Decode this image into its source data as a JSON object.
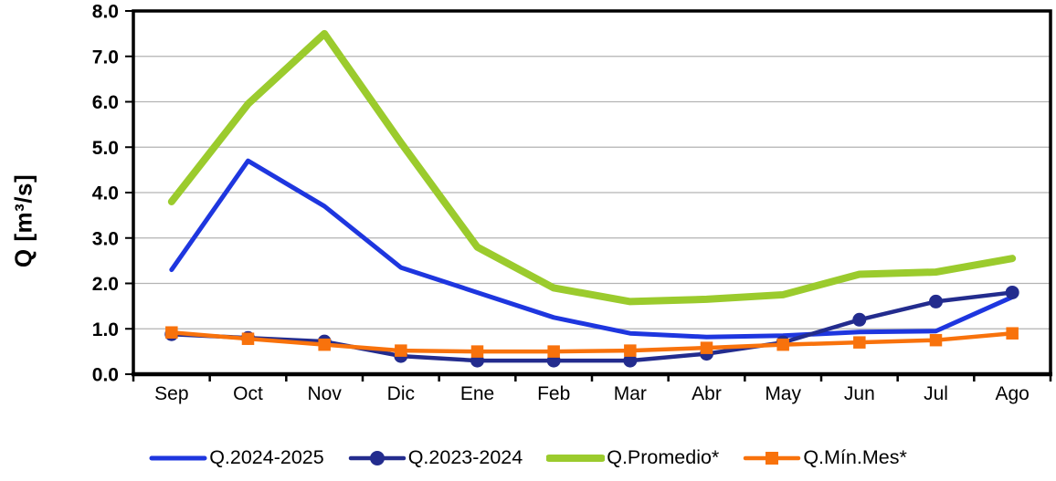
{
  "chart_data": {
    "type": "line",
    "title": "",
    "xlabel": "",
    "ylabel": "Q [m³/s]",
    "ylim": [
      0,
      8
    ],
    "y_tick_labels": [
      "0.0",
      "1.0",
      "2.0",
      "3.0",
      "4.0",
      "5.0",
      "6.0",
      "7.0",
      "8.0"
    ],
    "grid": true,
    "legend_position": "bottom",
    "axis_color": "#000000",
    "grid_color": "#b3b3b3",
    "categories": [
      "Sep",
      "Oct",
      "Nov",
      "Dic",
      "Ene",
      "Feb",
      "Mar",
      "Abr",
      "May",
      "Jun",
      "Jul",
      "Ago"
    ],
    "series": [
      {
        "name": "Q.2024-2025",
        "color": "#1e36df",
        "width": 5,
        "marker": "none",
        "values": [
          2.3,
          4.7,
          3.7,
          2.35,
          1.8,
          1.25,
          0.9,
          0.82,
          0.85,
          0.93,
          0.95,
          1.7
        ]
      },
      {
        "name": "Q.2023-2024",
        "color": "#232c8e",
        "width": 4.5,
        "marker": "circle",
        "values": [
          0.88,
          0.8,
          0.72,
          0.4,
          0.3,
          0.3,
          0.3,
          0.45,
          0.7,
          1.2,
          1.6,
          1.8
        ]
      },
      {
        "name": "Q.Promedio*",
        "color": "#9bcb2d",
        "width": 8,
        "marker": "none",
        "values": [
          3.8,
          5.95,
          7.5,
          5.1,
          2.8,
          1.9,
          1.6,
          1.65,
          1.75,
          2.2,
          2.25,
          2.55
        ]
      },
      {
        "name": "Q.Mín.Mes*",
        "color": "#f8720c",
        "width": 4.5,
        "marker": "square",
        "values": [
          0.92,
          0.78,
          0.65,
          0.52,
          0.5,
          0.5,
          0.52,
          0.58,
          0.65,
          0.7,
          0.75,
          0.9
        ]
      }
    ]
  }
}
